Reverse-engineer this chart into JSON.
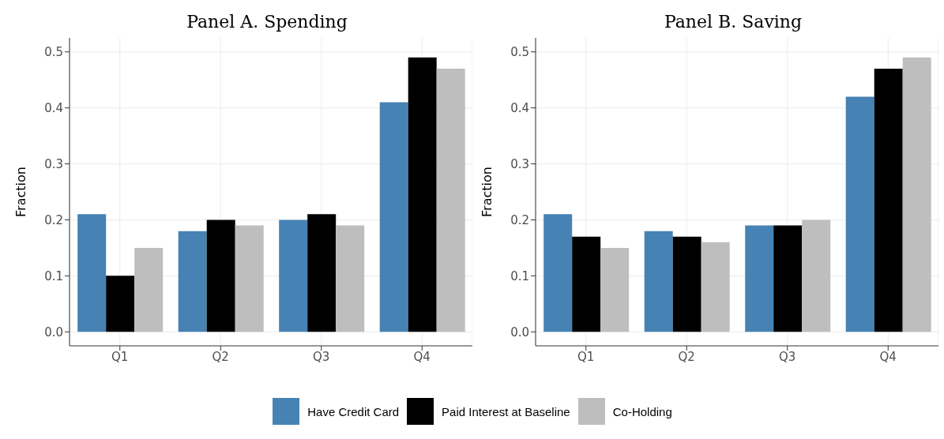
{
  "chart_data": [
    {
      "type": "bar",
      "title": "Panel A. Spending",
      "ylabel": "Fraction",
      "categories": [
        "Q1",
        "Q2",
        "Q3",
        "Q4"
      ],
      "series": [
        {
          "name": "Have Credit Card",
          "color": "#4682b4",
          "values": [
            0.21,
            0.18,
            0.2,
            0.41
          ]
        },
        {
          "name": "Paid Interest at Baseline",
          "color": "#000000",
          "values": [
            0.1,
            0.2,
            0.21,
            0.49
          ]
        },
        {
          "name": "Co-Holding",
          "color": "#bebebe",
          "values": [
            0.15,
            0.19,
            0.19,
            0.47
          ]
        }
      ],
      "ylim": [
        -0.025,
        0.525
      ],
      "yticks": [
        {
          "value": 0,
          "label": "0.0"
        },
        {
          "value": 0.1,
          "label": "0.1"
        },
        {
          "value": 0.2,
          "label": "0.2"
        },
        {
          "value": 0.3,
          "label": "0.3"
        },
        {
          "value": 0.4,
          "label": "0.4"
        },
        {
          "value": 0.5,
          "label": "0.5"
        }
      ],
      "grid": true,
      "legend": "bottom"
    },
    {
      "type": "bar",
      "title": "Panel B. Saving",
      "ylabel": "Fraction",
      "categories": [
        "Q1",
        "Q2",
        "Q3",
        "Q4"
      ],
      "series": [
        {
          "name": "Have Credit Card",
          "color": "#4682b4",
          "values": [
            0.21,
            0.18,
            0.19,
            0.42
          ]
        },
        {
          "name": "Paid Interest at Baseline",
          "color": "#000000",
          "values": [
            0.17,
            0.17,
            0.19,
            0.47
          ]
        },
        {
          "name": "Co-Holding",
          "color": "#bebebe",
          "values": [
            0.15,
            0.16,
            0.2,
            0.49
          ]
        }
      ],
      "ylim": [
        -0.025,
        0.525
      ],
      "yticks": [
        {
          "value": 0,
          "label": "0.0"
        },
        {
          "value": 0.1,
          "label": "0.1"
        },
        {
          "value": 0.2,
          "label": "0.2"
        },
        {
          "value": 0.3,
          "label": "0.3"
        },
        {
          "value": 0.4,
          "label": "0.4"
        },
        {
          "value": 0.5,
          "label": "0.5"
        }
      ],
      "grid": true,
      "legend": "bottom"
    }
  ]
}
